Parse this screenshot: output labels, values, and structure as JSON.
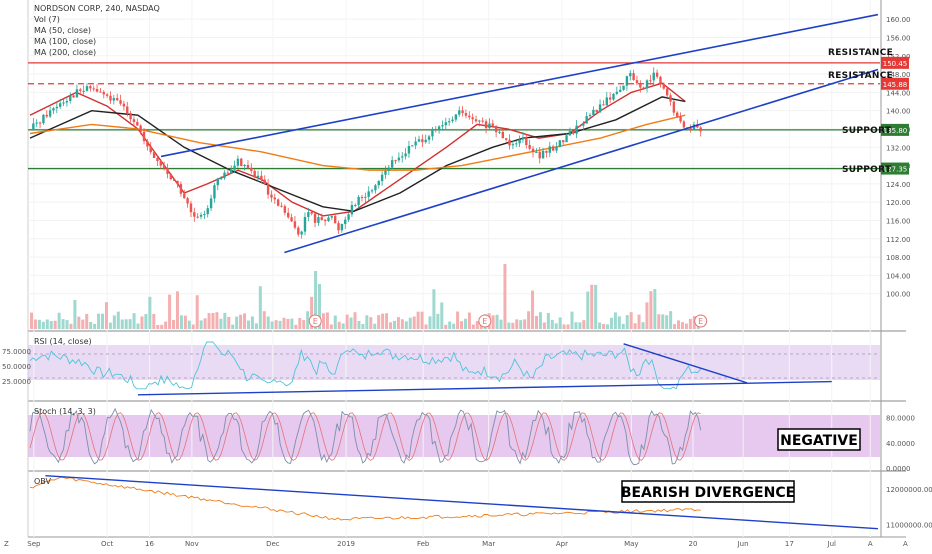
{
  "header": {
    "symbol_line": "NORDSON CORP, 240, NASDAQ",
    "indicator_lines": [
      "Vol (7)",
      "MA (50, close)",
      "MA (100, close)",
      "MA (200, close)"
    ]
  },
  "chart_data": {
    "type": "line",
    "symbol": "NORDSON CORP",
    "interval": "240",
    "exchange": "NASDAQ",
    "x_ticks": [
      "Sep",
      "Oct",
      "16",
      "Nov",
      "Dec",
      "2019",
      "Feb",
      "Mar",
      "Apr",
      "May",
      "20",
      "Jun",
      "17",
      "Jul",
      "A"
    ],
    "price_axis": {
      "ticks": [
        "160.00",
        "156.00",
        "152.00",
        "148.00",
        "144.00",
        "140.00",
        "136.00",
        "132.00",
        "128.00",
        "124.00",
        "120.00",
        "116.00",
        "112.00",
        "108.00",
        "104.00",
        "100.00"
      ],
      "ylim": [
        96,
        162
      ]
    },
    "price_badges": [
      {
        "value": "150.45",
        "color": "#e53935"
      },
      {
        "value": "145.88",
        "color": "#e53935"
      },
      {
        "value": "135.80",
        "color": "#2e7d32"
      },
      {
        "value": "127.35",
        "color": "#2e7d32"
      }
    ],
    "levels": [
      {
        "label": "RESISTANCE",
        "value": 150.45,
        "style": "solid",
        "color": "#e53935"
      },
      {
        "label": "RESISTANCE",
        "value": 145.88,
        "style": "dashed",
        "color": "#e53935"
      },
      {
        "label": "SUPPORT",
        "value": 135.8,
        "style": "solid",
        "color": "#2e7d32"
      },
      {
        "label": "SUPPORT",
        "value": 127.35,
        "style": "solid",
        "color": "#2e7d32"
      }
    ],
    "price_series": [
      {
        "x": 0,
        "y": 136
      },
      {
        "x": 2,
        "y": 139
      },
      {
        "x": 4,
        "y": 142
      },
      {
        "x": 6,
        "y": 144
      },
      {
        "x": 8,
        "y": 145
      },
      {
        "x": 10,
        "y": 143
      },
      {
        "x": 12,
        "y": 141
      },
      {
        "x": 14,
        "y": 137
      },
      {
        "x": 15,
        "y": 132
      },
      {
        "x": 17,
        "y": 128
      },
      {
        "x": 19,
        "y": 124
      },
      {
        "x": 20,
        "y": 121
      },
      {
        "x": 21,
        "y": 117
      },
      {
        "x": 22,
        "y": 116
      },
      {
        "x": 23,
        "y": 119
      },
      {
        "x": 24,
        "y": 124
      },
      {
        "x": 26,
        "y": 127
      },
      {
        "x": 27,
        "y": 129
      },
      {
        "x": 28,
        "y": 128
      },
      {
        "x": 29,
        "y": 126
      },
      {
        "x": 30,
        "y": 125
      },
      {
        "x": 31,
        "y": 121
      },
      {
        "x": 33,
        "y": 118
      },
      {
        "x": 34,
        "y": 115
      },
      {
        "x": 35,
        "y": 113
      },
      {
        "x": 36,
        "y": 118
      },
      {
        "x": 37,
        "y": 116
      },
      {
        "x": 39,
        "y": 117
      },
      {
        "x": 40,
        "y": 114
      },
      {
        "x": 41,
        "y": 117
      },
      {
        "x": 42,
        "y": 120
      },
      {
        "x": 44,
        "y": 122
      },
      {
        "x": 46,
        "y": 127
      },
      {
        "x": 48,
        "y": 130
      },
      {
        "x": 50,
        "y": 133
      },
      {
        "x": 52,
        "y": 135
      },
      {
        "x": 54,
        "y": 137
      },
      {
        "x": 56,
        "y": 140
      },
      {
        "x": 57,
        "y": 138
      },
      {
        "x": 59,
        "y": 137
      },
      {
        "x": 60,
        "y": 136
      },
      {
        "x": 61,
        "y": 135
      },
      {
        "x": 62,
        "y": 133
      },
      {
        "x": 64,
        "y": 134
      },
      {
        "x": 66,
        "y": 130
      },
      {
        "x": 68,
        "y": 132
      },
      {
        "x": 70,
        "y": 135
      },
      {
        "x": 72,
        "y": 138
      },
      {
        "x": 74,
        "y": 141
      },
      {
        "x": 76,
        "y": 144
      },
      {
        "x": 78,
        "y": 148
      },
      {
        "x": 79,
        "y": 145
      },
      {
        "x": 80,
        "y": 146
      },
      {
        "x": 81,
        "y": 148
      },
      {
        "x": 82,
        "y": 145
      },
      {
        "x": 83,
        "y": 142
      },
      {
        "x": 84,
        "y": 138
      },
      {
        "x": 85,
        "y": 136
      },
      {
        "x": 86,
        "y": 137
      },
      {
        "x": 87,
        "y": 135
      }
    ],
    "moving_averages": [
      {
        "name": "MA (50, close)",
        "color": "#d32f2f",
        "points": [
          [
            0,
            139
          ],
          [
            6,
            144
          ],
          [
            10,
            141
          ],
          [
            14,
            136
          ],
          [
            17,
            129
          ],
          [
            20,
            122
          ],
          [
            23,
            124
          ],
          [
            27,
            127
          ],
          [
            30,
            125
          ],
          [
            34,
            120
          ],
          [
            38,
            117
          ],
          [
            42,
            118
          ],
          [
            48,
            125
          ],
          [
            54,
            132
          ],
          [
            58,
            137
          ],
          [
            62,
            136
          ],
          [
            66,
            134
          ],
          [
            70,
            135
          ],
          [
            74,
            140
          ],
          [
            78,
            144
          ],
          [
            82,
            146
          ],
          [
            85,
            142
          ]
        ]
      },
      {
        "name": "MA (100, close)",
        "color": "#212121",
        "points": [
          [
            0,
            134
          ],
          [
            8,
            140
          ],
          [
            14,
            139
          ],
          [
            20,
            132
          ],
          [
            26,
            127
          ],
          [
            32,
            123
          ],
          [
            38,
            119
          ],
          [
            42,
            118
          ],
          [
            48,
            122
          ],
          [
            54,
            128
          ],
          [
            60,
            132
          ],
          [
            64,
            134
          ],
          [
            70,
            135
          ],
          [
            76,
            138
          ],
          [
            82,
            143
          ],
          [
            85,
            142
          ]
        ]
      },
      {
        "name": "MA (200, close)",
        "color": "#ef7d17",
        "points": [
          [
            0,
            135
          ],
          [
            8,
            137
          ],
          [
            14,
            136
          ],
          [
            22,
            133
          ],
          [
            30,
            131
          ],
          [
            38,
            128
          ],
          [
            44,
            127
          ],
          [
            50,
            127
          ],
          [
            56,
            128
          ],
          [
            62,
            130
          ],
          [
            68,
            132
          ],
          [
            74,
            134
          ],
          [
            80,
            137
          ],
          [
            85,
            139
          ]
        ]
      }
    ],
    "trendlines": [
      {
        "from": [
          17,
          130
        ],
        "to": [
          110,
          161
        ],
        "color": "#1e40c8"
      },
      {
        "from": [
          33,
          109
        ],
        "to": [
          110,
          149
        ],
        "color": "#1e40c8"
      }
    ],
    "earnings_markers": [
      "E",
      "E",
      "E"
    ],
    "rsi": {
      "label": "RSI (14, close)",
      "ticks": [
        "75.0000",
        "50.0000",
        "25.0000"
      ],
      "band": [
        30,
        70
      ],
      "ylim": [
        0,
        100
      ]
    },
    "stoch": {
      "label": "Stoch (14, 3, 3)",
      "ticks": [
        "80.0000",
        "40.0000",
        "0.0000"
      ],
      "band": [
        20,
        80
      ],
      "ylim": [
        0,
        100
      ]
    },
    "obv": {
      "label": "OBV",
      "ticks": [
        "12000000.0000",
        "11000000.0000"
      ]
    },
    "annotations": {
      "stoch_box": "NEGATIVE",
      "obv_box": "BEARISH DIVERGENCE"
    }
  },
  "footer": {
    "left_letter": "Z",
    "right_letter": "A"
  }
}
